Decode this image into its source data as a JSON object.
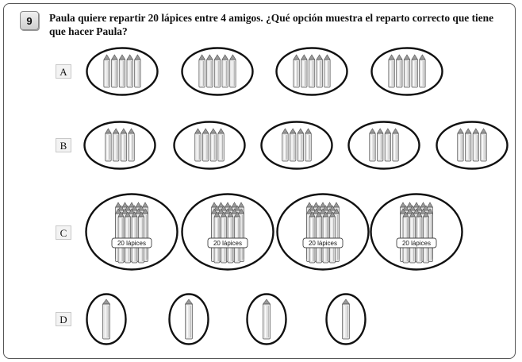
{
  "question": {
    "number": "9",
    "text_line1": "Paula quiere repartir 20 lápices entre 4 amigos. ¿Qué opción muestra el reparto correcto que tiene",
    "text_line2": "que hacer Paula?"
  },
  "options": [
    {
      "label": "A",
      "groups": 4,
      "pencils_per_group": 5,
      "bundle_label": ""
    },
    {
      "label": "B",
      "groups": 5,
      "pencils_per_group": 4,
      "bundle_label": ""
    },
    {
      "label": "C",
      "groups": 4,
      "pencils_per_group": 20,
      "bundle_label": "20 lápices"
    },
    {
      "label": "D",
      "groups": 4,
      "pencils_per_group": 1,
      "bundle_label": ""
    }
  ],
  "icons": {
    "pencil": "pencil-icon",
    "group": "group-ellipse"
  }
}
